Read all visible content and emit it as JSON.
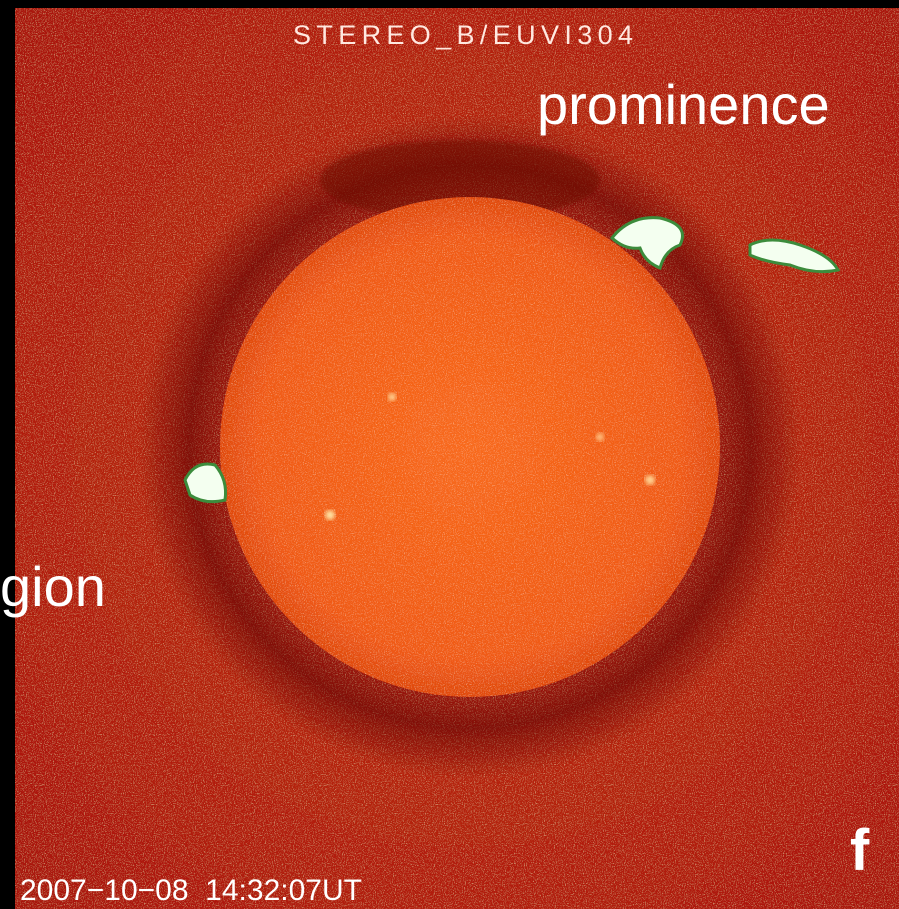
{
  "image": {
    "instrument_label": "STEREO_B/EUVI304",
    "annotation_top_right": "prominence",
    "annotation_left": "gion",
    "panel_letter": "f",
    "timestamp": "2007−10−08  14:32:07UT"
  }
}
